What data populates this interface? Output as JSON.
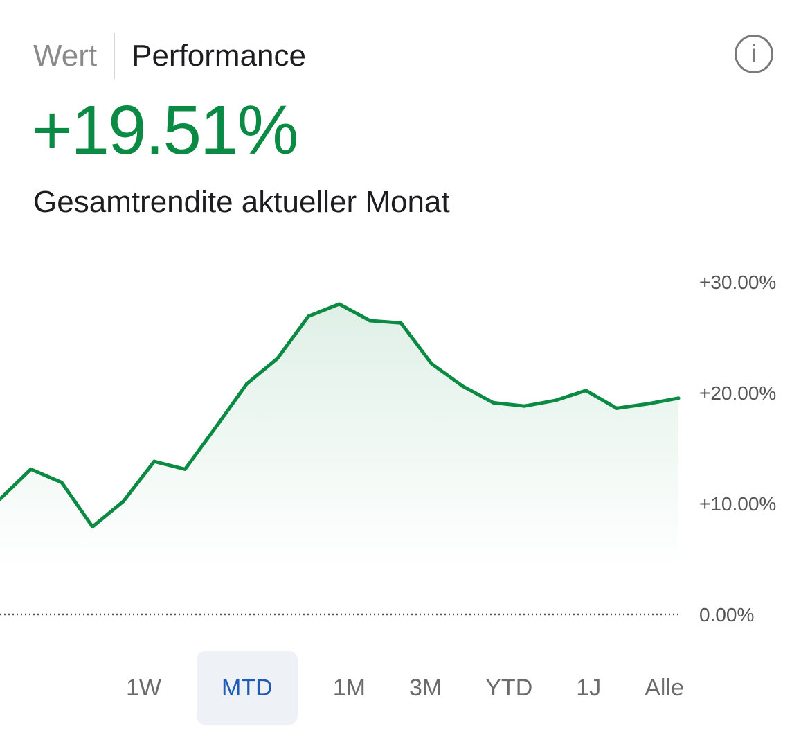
{
  "tabs": {
    "value_label": "Wert",
    "performance_label": "Performance"
  },
  "info_icon": {
    "glyph": "i",
    "name": "info-icon"
  },
  "summary": {
    "value": "+19.51%",
    "label": "Gesamtrendite aktueller Monat",
    "color": "#0b8a43"
  },
  "chart_data": {
    "type": "area",
    "title": "",
    "xlabel": "",
    "ylabel": "",
    "ylim": [
      0,
      30
    ],
    "y_ticks": [
      {
        "value": 30,
        "label": "+30.00%"
      },
      {
        "value": 20,
        "label": "+20.00%"
      },
      {
        "value": 10,
        "label": "+10.00%"
      },
      {
        "value": 0,
        "label": "0.00%"
      }
    ],
    "baseline": 0,
    "line_color": "#0b8a43",
    "series": [
      {
        "values": [
          10.4,
          13.1,
          11.9,
          7.9,
          10.2,
          13.8,
          13.1,
          16.9,
          20.8,
          23.1,
          26.9,
          28.0,
          26.5,
          26.3,
          22.6,
          20.6,
          19.1,
          18.8,
          19.3,
          20.2,
          18.6,
          19.0,
          19.51
        ]
      }
    ]
  },
  "ranges": {
    "selected": "MTD",
    "items": [
      "1W",
      "MTD",
      "1M",
      "3M",
      "YTD",
      "1J",
      "Alle"
    ]
  }
}
